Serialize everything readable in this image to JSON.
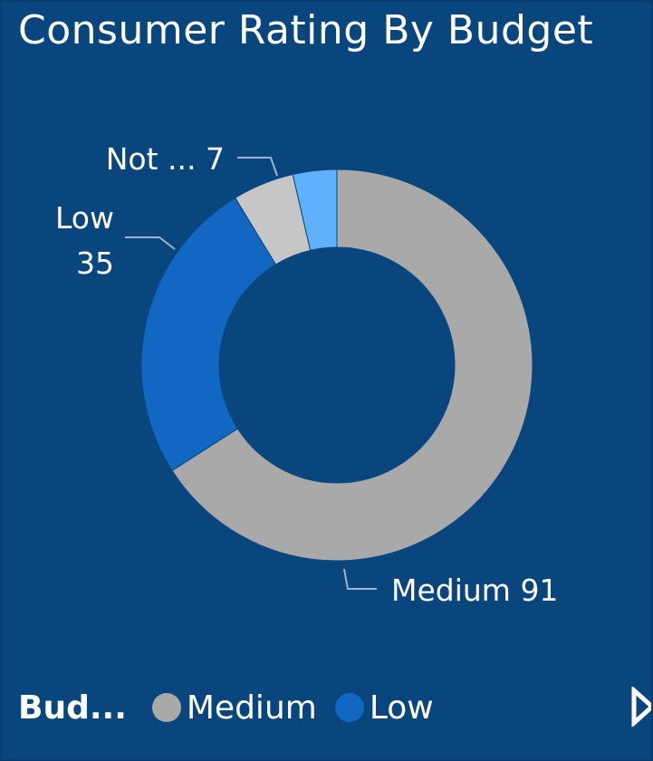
{
  "visual": {
    "title": "Consumer Rating By Budget",
    "background": "#0a467e"
  },
  "chart_data": {
    "type": "pie",
    "variant": "donut",
    "title": "Consumer Rating By Budget",
    "legend_title": "Bud...",
    "legend_position": "bottom-left",
    "slices": [
      {
        "name": "Medium",
        "value": 91,
        "label": "Medium 91",
        "color": "#a9a9a9"
      },
      {
        "name": "Low",
        "value": 35,
        "label_line1": "Low",
        "label_line2": "35",
        "color": "#1167c2"
      },
      {
        "name": "Not ...",
        "value": 7,
        "label": "Not ... 7",
        "color": "#c6c6c6"
      },
      {
        "name": "",
        "value": 5,
        "color": "#5eb1fa"
      }
    ]
  },
  "legend": {
    "title": "Bud...",
    "items": [
      {
        "label": "Medium",
        "color": "#a9a9a9"
      },
      {
        "label": "Low",
        "color": "#1167c2"
      }
    ],
    "next_icon": "chevron-right-icon"
  }
}
